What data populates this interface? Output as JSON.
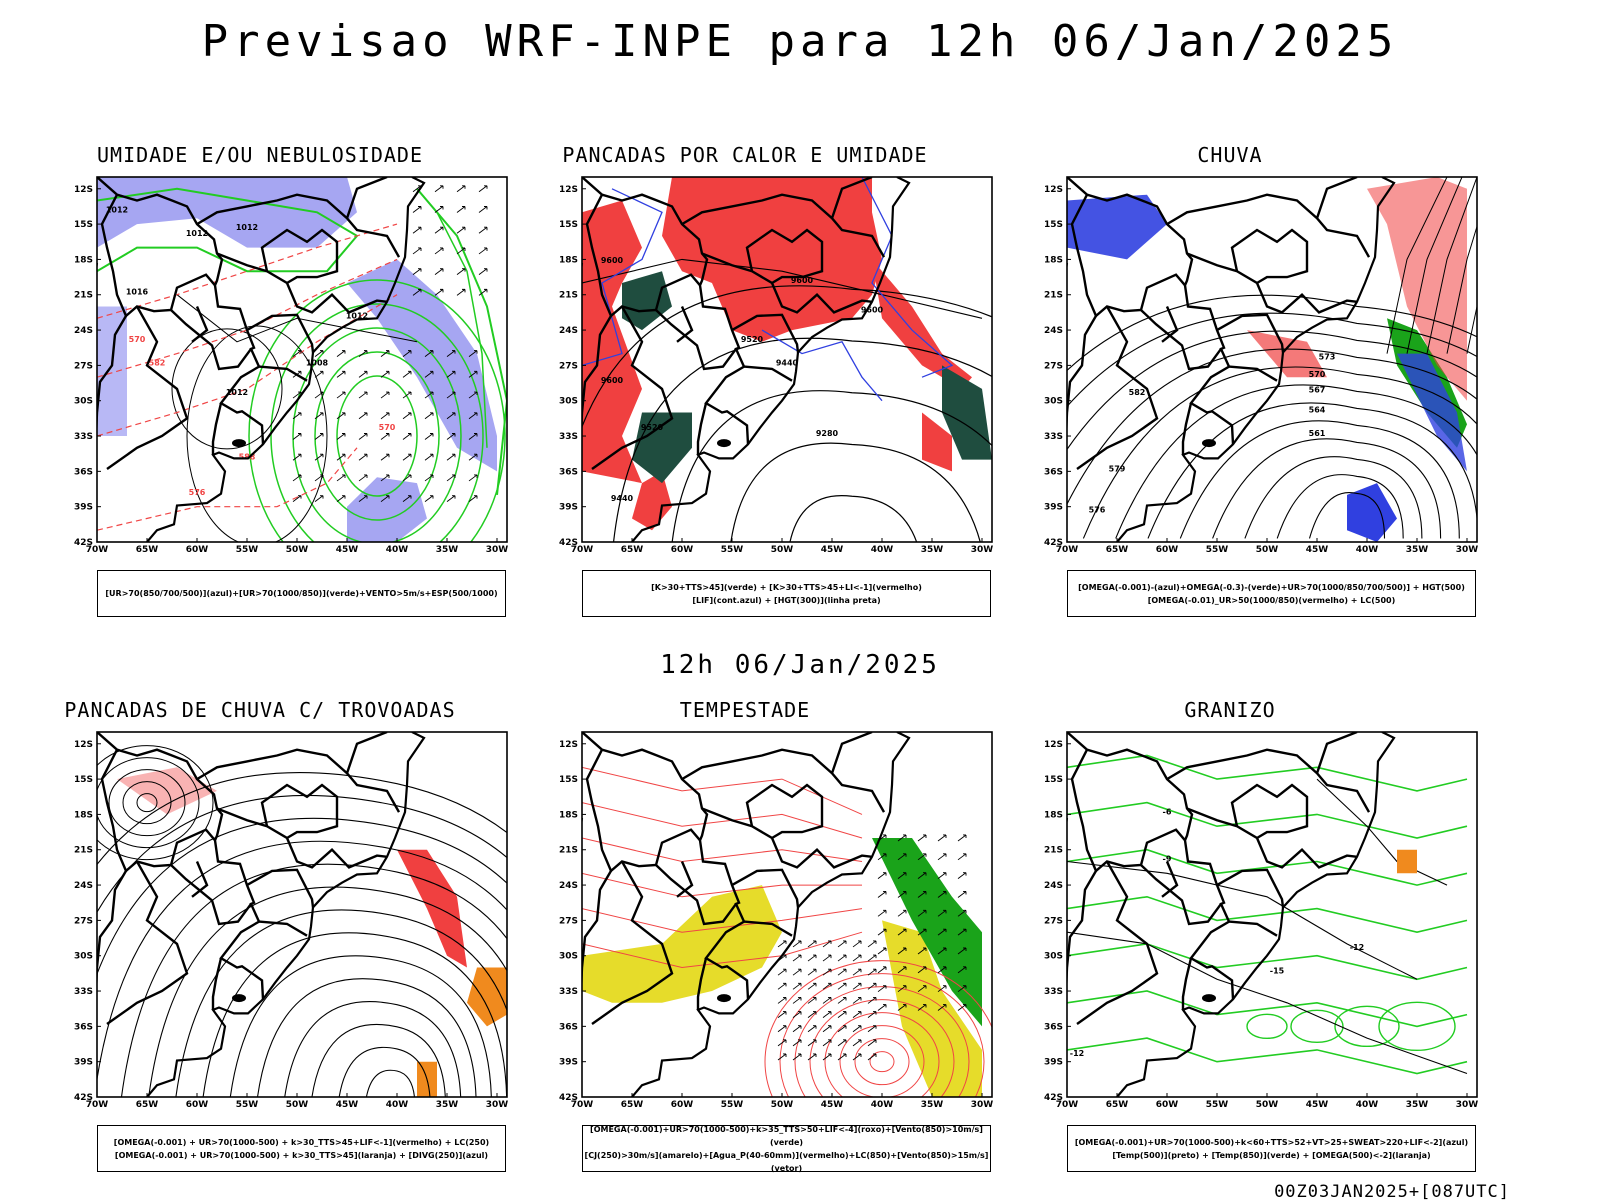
{
  "title": "Previsao WRF-INPE  para 12h 06/Jan/2025",
  "mid_title": "12h 06/Jan/2025",
  "footer": "00Z03JAN2025+[087UTC]",
  "lat_labels": [
    "12S",
    "15S",
    "18S",
    "21S",
    "24S",
    "27S",
    "30S",
    "33S",
    "36S",
    "39S",
    "42S"
  ],
  "lon_labels": [
    "70W",
    "65W",
    "60W",
    "55W",
    "50W",
    "45W",
    "40W",
    "35W",
    "30W"
  ],
  "panels": [
    {
      "title": "UMIDADE E/OU NEBULOSIDADE",
      "legend": [
        "[UR>70(850/700/500)](azul)+[UR>70(1000/850)](verde)+VENTO>5m/s+ESP(500/1000)"
      ],
      "contour_labels": [
        "1012",
        "1012",
        "1012",
        "1008",
        "1012",
        "1016",
        "1012",
        "570",
        "576",
        "570",
        "582",
        "588"
      ]
    },
    {
      "title": "PANCADAS POR CALOR E UMIDADE",
      "legend": [
        "[K>30+TTS>45](verde) + [K>30+TTS>45+LI<-1](vermelho)",
        "[LIF](cont.azul) + [HGT(300)](linha preta)"
      ],
      "contour_labels": [
        "9600",
        "9600",
        "9520",
        "9440",
        "9280",
        "9600",
        "9440",
        "9520",
        "9600"
      ]
    },
    {
      "title": "CHUVA",
      "legend": [
        "[OMEGA(-0.001)-(azul)+OMEGA(-0.3)-(verde)+UR>70(1000/850/700/500)] + HGT(500)",
        "[OMEGA(-0.01)_UR>50(1000/850)(vermelho) + LC(500)"
      ],
      "contour_labels": [
        "573",
        "570",
        "567",
        "564",
        "561",
        "582",
        "579",
        "576"
      ]
    },
    {
      "title": "PANCADAS DE CHUVA C/ TROVOADAS",
      "legend": [
        "[OMEGA(-0.001) + UR>70(1000-500) + k>30_TTS>45+LIF<-1](vermelho) + LC(250)",
        "[OMEGA(-0.001) + UR>70(1000-500) + k>30_TTS>45](laranja) + [DIVG(250)](azul)"
      ],
      "contour_labels": []
    },
    {
      "title": "TEMPESTADE",
      "legend": [
        "[OMEGA(-0.001)+UR>70(1000-500)+k>35_TTS>50+LIF<-4](roxo)+[Vento(850)>10m/s](verde)",
        "[CJ(250)>30m/s](amarelo)+[Agua_P(40-60mm)](vermelho)+LC(850)+[Vento(850)>15m/s](vetor)"
      ],
      "contour_labels": []
    },
    {
      "title": "GRANIZO",
      "legend": [
        "[OMEGA(-0.001)+UR>70(1000-500)+k<60+TTS>52+VT>25+SWEAT>220+LIF<-2](azul)",
        "[Temp(500)](preto) + [Temp(850)](verde) + [OMEGA(500)<-2](laranja)"
      ],
      "contour_labels": [
        "-12",
        "-15",
        "-12",
        "-9",
        "-6"
      ]
    }
  ],
  "colors": {
    "blue_fill": "#a6a6f2",
    "green_line": "#22cc22",
    "red_fill": "#f04040",
    "dark_green_fill": "#1f4d3f",
    "red_line": "#f04545",
    "yellow_fill": "#e6dc2a",
    "green_fill": "#1aa31a",
    "orange_fill": "#f08a1e",
    "blue_line": "#3040e0"
  }
}
